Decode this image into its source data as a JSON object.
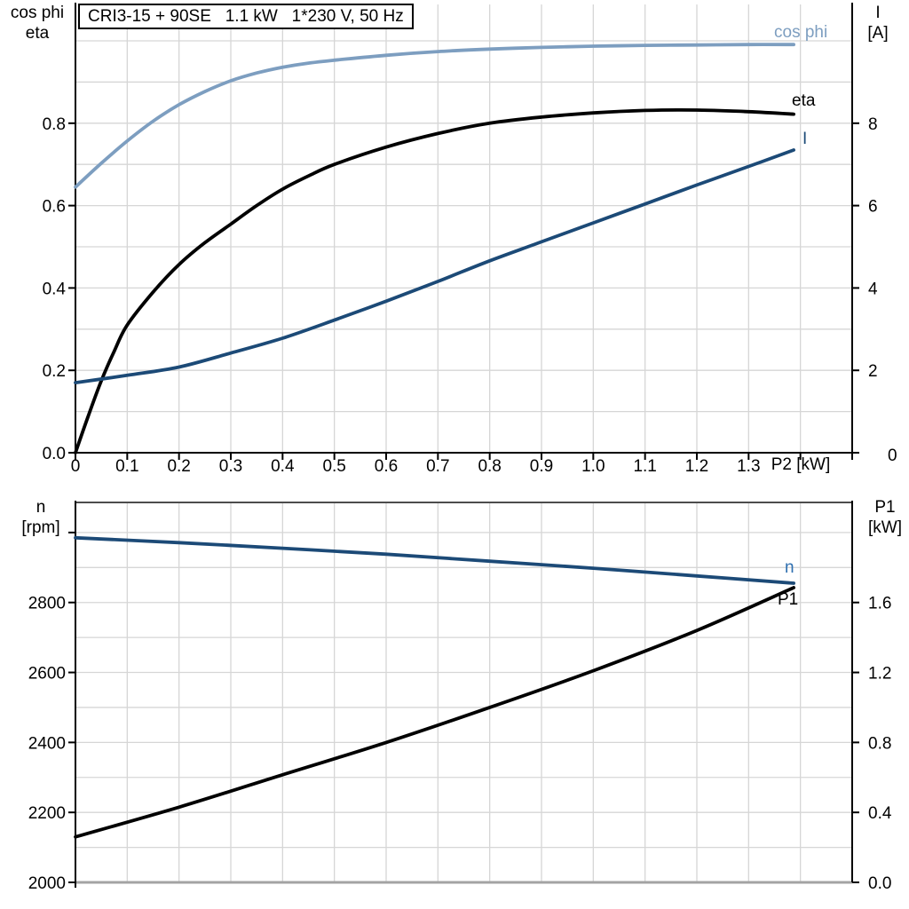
{
  "colors": {
    "background": "#ffffff",
    "grid": "#d6d6d6",
    "axis": "#000000",
    "frame_top": "#4d4d4d",
    "frame_bottom": "#a3a3a3",
    "light_blue": "#7d9ec0",
    "dark_blue": "#1c4a77",
    "black": "#000000",
    "n_label_blue": "#2e6fb0"
  },
  "chart_data": [
    {
      "type": "line",
      "title": "CRI3-15 + 90SE   1.1 kW   1*230 V, 50 Hz",
      "x_axis": {
        "label": "P2 [kW]",
        "min": 0,
        "max": 1.5,
        "grid_step": 0.1,
        "tick_values": [
          0,
          0.1,
          0.2,
          0.3,
          0.4,
          0.5,
          0.6,
          0.7,
          0.8,
          0.9,
          1.0,
          1.1,
          1.2,
          1.3,
          1.4,
          1.5
        ],
        "tick_labels": [
          "0",
          "0.1",
          "0.2",
          "0.3",
          "0.4",
          "0.5",
          "0.6",
          "0.7",
          "0.8",
          "0.9",
          "1.0",
          "1.1",
          "1.2",
          "1.3",
          "",
          ""
        ]
      },
      "left_axis": {
        "title_line1": "cos phi",
        "title_line2": "eta",
        "min": 0,
        "max": 1.0884,
        "grid_step": 0.1,
        "grid_max": 1.0,
        "tick_values": [
          0,
          0.2,
          0.4,
          0.6,
          0.8
        ],
        "tick_labels": [
          "0.0",
          "0.2",
          "0.4",
          "0.6",
          "0.8"
        ]
      },
      "right_axis": {
        "title_line1": "I",
        "title_line2": "[A]",
        "min": 0,
        "max": 10.884,
        "tick_values": [
          0,
          2,
          4,
          6,
          8
        ],
        "tick_labels": [
          "0",
          "2",
          "4",
          "6",
          "8"
        ]
      },
      "series": [
        {
          "name": "cos phi",
          "axis": "left",
          "color": "#7d9ec0",
          "points": [
            [
              0,
              0.645
            ],
            [
              0.05,
              0.703
            ],
            [
              0.1,
              0.757
            ],
            [
              0.15,
              0.805
            ],
            [
              0.2,
              0.845
            ],
            [
              0.25,
              0.877
            ],
            [
              0.3,
              0.903
            ],
            [
              0.35,
              0.922
            ],
            [
              0.4,
              0.936
            ],
            [
              0.45,
              0.946
            ],
            [
              0.5,
              0.953
            ],
            [
              0.6,
              0.965
            ],
            [
              0.7,
              0.974
            ],
            [
              0.8,
              0.98
            ],
            [
              0.9,
              0.984
            ],
            [
              1.0,
              0.987
            ],
            [
              1.1,
              0.989
            ],
            [
              1.2,
              0.99
            ],
            [
              1.3,
              0.991
            ],
            [
              1.387,
              0.991
            ]
          ]
        },
        {
          "name": "eta",
          "axis": "left",
          "color": "#000000",
          "points": [
            [
              0,
              0
            ],
            [
              0.025,
              0.09
            ],
            [
              0.05,
              0.175
            ],
            [
              0.075,
              0.247
            ],
            [
              0.1,
              0.31
            ],
            [
              0.15,
              0.39
            ],
            [
              0.2,
              0.457
            ],
            [
              0.25,
              0.51
            ],
            [
              0.3,
              0.555
            ],
            [
              0.35,
              0.6
            ],
            [
              0.4,
              0.64
            ],
            [
              0.45,
              0.672
            ],
            [
              0.5,
              0.7
            ],
            [
              0.6,
              0.742
            ],
            [
              0.7,
              0.775
            ],
            [
              0.8,
              0.8
            ],
            [
              0.9,
              0.815
            ],
            [
              1.0,
              0.825
            ],
            [
              1.1,
              0.831
            ],
            [
              1.2,
              0.832
            ],
            [
              1.3,
              0.828
            ],
            [
              1.387,
              0.822
            ]
          ]
        },
        {
          "name": "I",
          "axis": "right",
          "color": "#1c4a77",
          "points": [
            [
              0,
              1.7
            ],
            [
              0.1,
              1.88
            ],
            [
              0.2,
              2.08
            ],
            [
              0.3,
              2.42
            ],
            [
              0.4,
              2.78
            ],
            [
              0.5,
              3.22
            ],
            [
              0.6,
              3.68
            ],
            [
              0.7,
              4.16
            ],
            [
              0.8,
              4.66
            ],
            [
              0.9,
              5.12
            ],
            [
              1.0,
              5.58
            ],
            [
              1.1,
              6.04
            ],
            [
              1.2,
              6.5
            ],
            [
              1.3,
              6.95
            ],
            [
              1.387,
              7.35
            ]
          ]
        }
      ]
    },
    {
      "type": "line",
      "title": "",
      "x_axis": {
        "label": "",
        "min": 0,
        "max": 1.5,
        "grid_step": 0.1,
        "tick_values": [],
        "tick_labels": []
      },
      "left_axis": {
        "title_line1": "n",
        "title_line2": "[rpm]",
        "min": 2000,
        "max": 3086,
        "grid_step": 100,
        "grid_max": 3000,
        "tick_values": [
          2000,
          2200,
          2400,
          2600,
          2800,
          3000
        ],
        "tick_labels": [
          "2000",
          "2200",
          "2400",
          "2600",
          "2800",
          ""
        ]
      },
      "right_axis": {
        "title_line1": "P1",
        "title_line2": "[kW]",
        "min": 0,
        "max": 2.172,
        "tick_values": [
          0,
          0.4,
          0.8,
          1.2,
          1.6
        ],
        "tick_labels": [
          "0.0",
          "0.4",
          "0.8",
          "1.2",
          "1.6"
        ]
      },
      "series": [
        {
          "name": "n",
          "axis": "left",
          "color": "#1c4a77",
          "points": [
            [
              0,
              2985
            ],
            [
              0.2,
              2971
            ],
            [
              0.4,
              2955
            ],
            [
              0.6,
              2938
            ],
            [
              0.8,
              2918
            ],
            [
              1.0,
              2898
            ],
            [
              1.2,
              2876
            ],
            [
              1.387,
              2855
            ]
          ]
        },
        {
          "name": "P1",
          "axis": "right",
          "color": "#000000",
          "points": [
            [
              0,
              0.26
            ],
            [
              0.2,
              0.43
            ],
            [
              0.4,
              0.615
            ],
            [
              0.6,
              0.8
            ],
            [
              0.8,
              1.0
            ],
            [
              1.0,
              1.21
            ],
            [
              1.2,
              1.44
            ],
            [
              1.387,
              1.685
            ]
          ]
        }
      ]
    }
  ]
}
